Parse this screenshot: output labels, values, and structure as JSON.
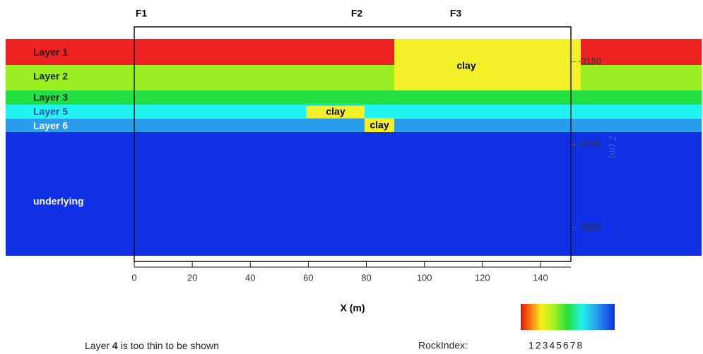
{
  "figure": {
    "faults": [
      "F1",
      "F2",
      "F3"
    ],
    "layers": [
      "Layer 1",
      "Layer 2",
      "Layer 3",
      "Layer 5",
      "Layer 6",
      "underlying"
    ],
    "clays": [
      "clay",
      "clay",
      "clay"
    ],
    "x_axis": {
      "label": "X (m)",
      "xlim": [
        0,
        150
      ],
      "ticks": [
        0,
        20,
        40,
        60,
        80,
        100,
        120,
        140
      ]
    },
    "z_axis": {
      "label": "Z (m)",
      "zlim": [
        -3170,
        -3230
      ],
      "ticks": [
        -3180,
        -3200,
        -3220
      ]
    },
    "note": {
      "before": "Layer ",
      "bold": "4",
      "after": " is too thin to be shown"
    },
    "colorbar": {
      "label": "RockIndex:",
      "indices": "12345678"
    }
  }
}
